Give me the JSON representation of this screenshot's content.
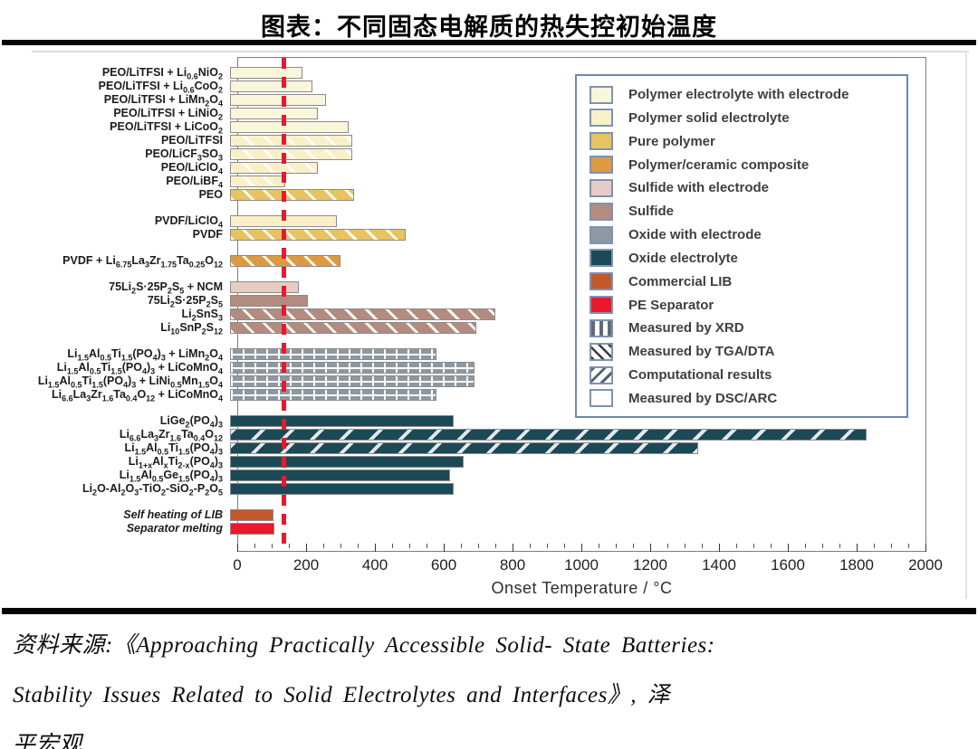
{
  "page": {
    "title": "图表：不同固态电解质的热失控初始温度"
  },
  "source": {
    "lines": [
      "资料来源:《Approaching Practically Accessible Solid- State Batteries:",
      "Stability Issues Related to Solid Electrolytes and Interfaces》, 泽",
      "平宏观"
    ]
  },
  "chart_data": {
    "type": "bar",
    "orientation": "horizontal",
    "xlabel": "Onset Temperature / °C",
    "xlim": [
      0,
      2000
    ],
    "x_ticks": [
      0,
      200,
      400,
      600,
      800,
      1000,
      1200,
      1400,
      1600,
      1800,
      2000
    ],
    "reference_line": {
      "value": 130,
      "color": "#e8192c",
      "style": "dashed-vertical"
    },
    "palette": {
      "polymer_with_electrode": "#f9f6dc",
      "polymer_solid": "#faf0c8",
      "pure_polymer": "#e8c35f",
      "polymer_ceramic": "#de9a40",
      "sulfide_with_electrode": "#e7ccc3",
      "sulfide": "#b38b7f",
      "oxide_with_electrode": "#8e98a0",
      "oxide": "#1c4956",
      "commercial_lib": "#c05a2d",
      "pe_separator": "#e8192c",
      "white": "#ffffff"
    },
    "rows": [
      {
        "label_html": "PEO/LiTFSI + Li<sub>0.6</sub>NiO<sub>2</sub>",
        "value": 210,
        "fill": "polymer_with_electrode",
        "pattern": "none",
        "gap_before": false,
        "italic": false
      },
      {
        "label_html": "PEO/LiTFSI + Li<sub>0.6</sub>CoO<sub>2</sub>",
        "value": 240,
        "fill": "polymer_with_electrode",
        "pattern": "none",
        "gap_before": false,
        "italic": false
      },
      {
        "label_html": "PEO/LiTFSI + LiMn<sub>2</sub>O<sub>4</sub>",
        "value": 280,
        "fill": "polymer_with_electrode",
        "pattern": "none",
        "gap_before": false,
        "italic": false
      },
      {
        "label_html": "PEO/LiTFSI + LiNiO<sub>2</sub>",
        "value": 255,
        "fill": "polymer_with_electrode",
        "pattern": "none",
        "gap_before": false,
        "italic": false
      },
      {
        "label_html": "PEO/LiTFSI + LiCoO<sub>2</sub>",
        "value": 345,
        "fill": "polymer_with_electrode",
        "pattern": "none",
        "gap_before": false,
        "italic": false
      },
      {
        "label_html": "PEO/LiTFSI",
        "value": 355,
        "fill": "polymer_solid",
        "pattern": "tga",
        "gap_before": false,
        "italic": false
      },
      {
        "label_html": "PEO/LiCF<sub>3</sub>SO<sub>3</sub>",
        "value": 355,
        "fill": "polymer_solid",
        "pattern": "tga",
        "gap_before": false,
        "italic": false
      },
      {
        "label_html": "PEO/LiClO<sub>4</sub>",
        "value": 255,
        "fill": "polymer_solid",
        "pattern": "tga",
        "gap_before": false,
        "italic": false
      },
      {
        "label_html": "PEO/LiBF<sub>4</sub>",
        "value": 160,
        "fill": "polymer_solid",
        "pattern": "tga",
        "gap_before": false,
        "italic": false
      },
      {
        "label_html": "PEO",
        "value": 360,
        "fill": "pure_polymer",
        "pattern": "tga",
        "gap_before": false,
        "italic": false
      },
      {
        "label_html": "PVDF/LiClO<sub>4</sub>",
        "value": 310,
        "fill": "polymer_solid",
        "pattern": "none",
        "gap_before": true,
        "italic": false
      },
      {
        "label_html": "PVDF",
        "value": 510,
        "fill": "pure_polymer",
        "pattern": "tga",
        "gap_before": false,
        "italic": false
      },
      {
        "label_html": "PVDF + Li<sub>6.75</sub>La<sub>3</sub>Zr<sub>1.75</sub>Ta<sub>0.25</sub>O<sub>12</sub>",
        "value": 320,
        "fill": "polymer_ceramic",
        "pattern": "tga",
        "gap_before": true,
        "italic": false
      },
      {
        "label_html": "75Li<sub>2</sub>S·25P<sub>2</sub>S<sub>5</sub> + NCM",
        "value": 200,
        "fill": "sulfide_with_electrode",
        "pattern": "none",
        "gap_before": true,
        "italic": false
      },
      {
        "label_html": "75Li<sub>2</sub>S·25P<sub>2</sub>S<sub>5</sub>",
        "value": 225,
        "fill": "sulfide",
        "pattern": "none",
        "gap_before": false,
        "italic": false
      },
      {
        "label_html": "Li<sub>2</sub>SnS<sub>3</sub>",
        "value": 770,
        "fill": "sulfide",
        "pattern": "tga",
        "gap_before": false,
        "italic": false
      },
      {
        "label_html": "Li<sub>10</sub>SnP<sub>2</sub>S<sub>12</sub>",
        "value": 715,
        "fill": "sulfide",
        "pattern": "tga",
        "gap_before": false,
        "italic": false
      },
      {
        "label_html": "Li<sub>1.5</sub>Al<sub>0.5</sub>Ti<sub>1.5</sub>(PO<sub>4</sub>)<sub>3</sub> + LiMn<sub>2</sub>O<sub>4</sub>",
        "value": 600,
        "fill": "oxide_with_electrode",
        "pattern": "xrd",
        "gap_before": true,
        "italic": false
      },
      {
        "label_html": "Li<sub>1.5</sub>Al<sub>0.5</sub>Ti<sub>1.5</sub>(PO<sub>4</sub>)<sub>3</sub> + LiCoMnO<sub>4</sub>",
        "value": 710,
        "fill": "oxide_with_electrode",
        "pattern": "xrd",
        "gap_before": false,
        "italic": false
      },
      {
        "label_html": "Li<sub>1.5</sub>Al<sub>0.5</sub>Ti<sub>1.5</sub>(PO<sub>4</sub>)<sub>3</sub> + LiNi<sub>0.5</sub>Mn<sub>1.5</sub>O<sub>4</sub>",
        "value": 710,
        "fill": "oxide_with_electrode",
        "pattern": "xrd",
        "gap_before": false,
        "italic": false
      },
      {
        "label_html": "Li<sub>6.6</sub>La<sub>3</sub>Zr<sub>1.6</sub>Ta<sub>0.4</sub>O<sub>12</sub> + LiCoMnO<sub>4</sub>",
        "value": 600,
        "fill": "oxide_with_electrode",
        "pattern": "xrd",
        "gap_before": false,
        "italic": false
      },
      {
        "label_html": "LiGe<sub>2</sub>(PO<sub>4</sub>)<sub>3</sub>",
        "value": 650,
        "fill": "oxide",
        "pattern": "none",
        "gap_before": true,
        "italic": false
      },
      {
        "label_html": "Li<sub>6.6</sub>La<sub>3</sub>Zr<sub>1.6</sub>Ta<sub>0.4</sub>O<sub>12</sub>",
        "value": 1850,
        "fill": "oxide",
        "pattern": "comp",
        "gap_before": false,
        "italic": false
      },
      {
        "label_html": "Li<sub>1.5</sub>Al<sub>0.5</sub>Ti<sub>1.5</sub>(PO<sub>4</sub>)<sub>3</sub>",
        "value": 1360,
        "fill": "oxide",
        "pattern": "comp",
        "gap_before": false,
        "italic": false
      },
      {
        "label_html": "Li<sub>1+x</sub>Al<sub>x</sub>Ti<sub>2-x</sub>(PO<sub>4</sub>)<sub>3</sub>",
        "value": 680,
        "fill": "oxide",
        "pattern": "none",
        "gap_before": false,
        "italic": false
      },
      {
        "label_html": "Li<sub>1.5</sub>Al<sub>0.5</sub>Ge<sub>1.5</sub>(PO<sub>4</sub>)<sub>3</sub>",
        "value": 640,
        "fill": "oxide",
        "pattern": "none",
        "gap_before": false,
        "italic": false
      },
      {
        "label_html": "Li<sub>2</sub>O-Al<sub>2</sub>O<sub>3</sub>-TiO<sub>2</sub>-SiO<sub>2</sub>-P<sub>2</sub>O<sub>5</sub>",
        "value": 650,
        "fill": "oxide",
        "pattern": "none",
        "gap_before": false,
        "italic": false
      },
      {
        "label_html": "Self heating of LIB",
        "value": 125,
        "fill": "commercial_lib",
        "pattern": "none",
        "gap_before": true,
        "italic": true
      },
      {
        "label_html": "Separator melting",
        "value": 130,
        "fill": "pe_separator",
        "pattern": "none",
        "gap_before": false,
        "italic": true
      }
    ],
    "legend": [
      {
        "label": "Polymer electrolyte with electrode",
        "fill": "polymer_with_electrode",
        "pattern": "none"
      },
      {
        "label": "Polymer solid electrolyte",
        "fill": "polymer_solid",
        "pattern": "none"
      },
      {
        "label": "Pure polymer",
        "fill": "pure_polymer",
        "pattern": "none"
      },
      {
        "label": "Polymer/ceramic composite",
        "fill": "polymer_ceramic",
        "pattern": "none"
      },
      {
        "label": "Sulfide with electrode",
        "fill": "sulfide_with_electrode",
        "pattern": "none"
      },
      {
        "label": "Sulfide",
        "fill": "sulfide",
        "pattern": "none"
      },
      {
        "label": "Oxide with electrode",
        "fill": "oxide_with_electrode",
        "pattern": "none"
      },
      {
        "label": "Oxide electrolyte",
        "fill": "oxide",
        "pattern": "none"
      },
      {
        "label": "Commercial LIB",
        "fill": "commercial_lib",
        "pattern": "none"
      },
      {
        "label": "PE Separator",
        "fill": "pe_separator",
        "pattern": "none"
      },
      {
        "label": "Measured by  XRD",
        "fill": "white",
        "pattern": "xrd"
      },
      {
        "label": "Measured by  TGA/DTA",
        "fill": "white",
        "pattern": "tga"
      },
      {
        "label": "Computational results",
        "fill": "white",
        "pattern": "comp"
      },
      {
        "label": "Measured by  DSC/ARC",
        "fill": "white",
        "pattern": "none"
      }
    ]
  }
}
